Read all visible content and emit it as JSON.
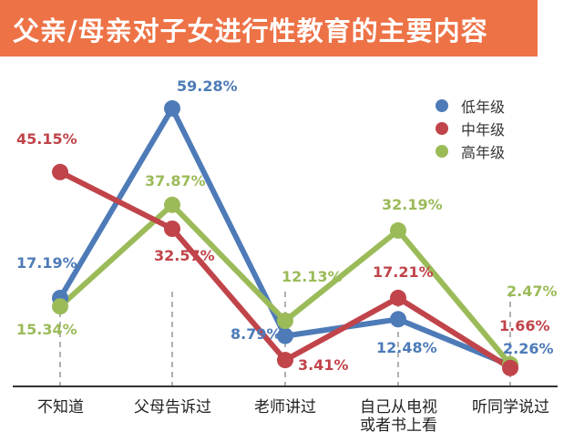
{
  "title": "父亲/母亲对子女进行性教育的主要内容",
  "colors": {
    "title_bg": "#ED7246",
    "title_text": "#FFFFFF",
    "low": "#4E7BB8",
    "mid": "#C0444A",
    "high": "#9BBB59",
    "dashed": "#B0B0B0",
    "axis": "#333333"
  },
  "chart_data": {
    "type": "line",
    "title": "父亲/母亲对子女进行性教育的主要内容",
    "categories": [
      [
        "不知道"
      ],
      [
        "父母告诉过"
      ],
      [
        "老师讲过"
      ],
      [
        "自己从电视",
        "或者书上看"
      ],
      [
        "听同学说过"
      ]
    ],
    "series": [
      {
        "name": "低年级",
        "color": "#4E7BB8",
        "values": [
          17.19,
          59.28,
          8.79,
          12.48,
          2.26
        ],
        "labels": [
          "17.19%",
          "59.28%",
          "8.79%",
          "12.48%",
          "2.26%"
        ]
      },
      {
        "name": "中年级",
        "color": "#C0444A",
        "values": [
          45.15,
          32.57,
          3.41,
          17.21,
          1.66
        ],
        "labels": [
          "45.15%",
          "32.57%",
          "3.41%",
          "17.21%",
          "1.66%"
        ]
      },
      {
        "name": "高年级",
        "color": "#9BBB59",
        "values": [
          15.34,
          37.87,
          12.13,
          32.19,
          2.47
        ],
        "labels": [
          "15.34%",
          "37.87%",
          "12.13%",
          "32.19%",
          "2.47%"
        ]
      }
    ],
    "ylim": [
      0,
      62
    ],
    "xlabel": "",
    "ylabel": "",
    "legend": "top-right",
    "grid": false
  }
}
